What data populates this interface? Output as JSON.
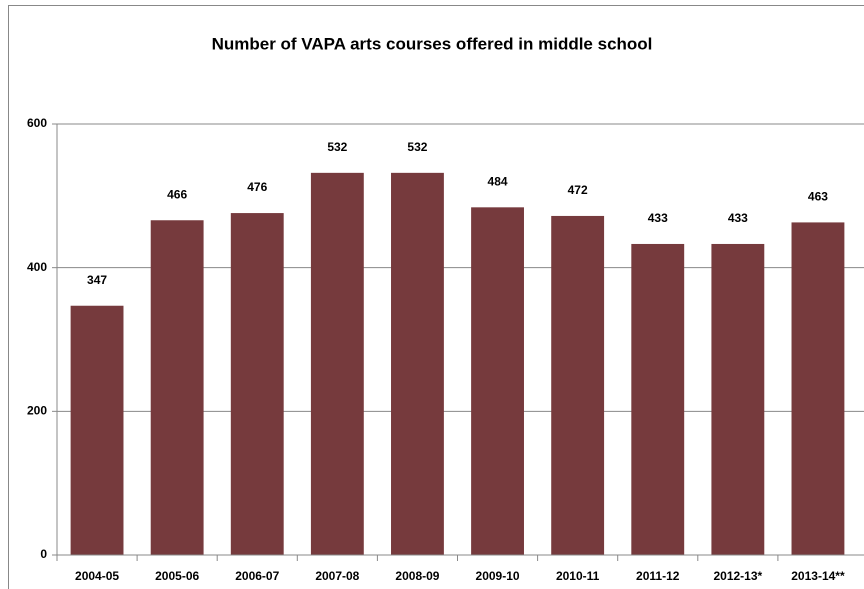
{
  "chart_data": {
    "type": "bar",
    "title": "Number of VAPA arts courses offered in middle school",
    "categories": [
      "2004-05",
      "2005-06",
      "2006-07",
      "2007-08",
      "2008-09",
      "2009-10",
      "2010-11",
      "2011-12",
      "2012-13*",
      "2013-14**"
    ],
    "values": [
      347,
      466,
      476,
      532,
      532,
      484,
      472,
      433,
      433,
      463
    ],
    "color": "#763a3d",
    "ylim": [
      0,
      600
    ],
    "yticks": [
      0,
      200,
      400,
      600
    ],
    "grid": true
  }
}
